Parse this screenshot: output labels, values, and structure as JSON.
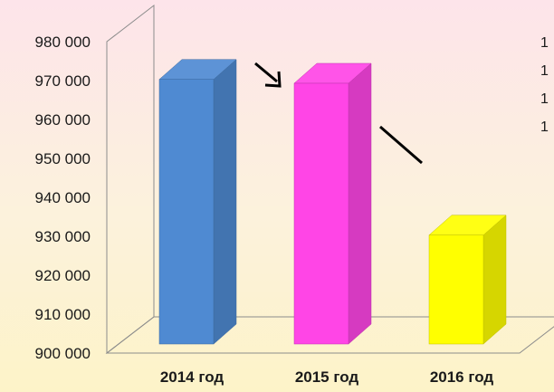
{
  "chart_data": {
    "type": "bar",
    "style": "3d-column",
    "categories": [
      "2014 год",
      "2015 год",
      "2016 год"
    ],
    "values": [
      971000,
      970000,
      931000
    ],
    "colors": [
      "#4f8ad2",
      "#ff45e6",
      "#ffff00"
    ],
    "ylim": [
      900000,
      980000
    ],
    "yticks": [
      "900 000",
      "910 000",
      "920 000",
      "930 000",
      "940 000",
      "950 000",
      "960 000",
      "970 000",
      "980 000"
    ],
    "title": "",
    "xlabel": "",
    "ylabel": "",
    "legend_placement": "right",
    "legend_entries": [
      "1",
      "1",
      "1",
      "1"
    ],
    "annotations": [
      "arrow",
      "line"
    ],
    "grid": false
  }
}
